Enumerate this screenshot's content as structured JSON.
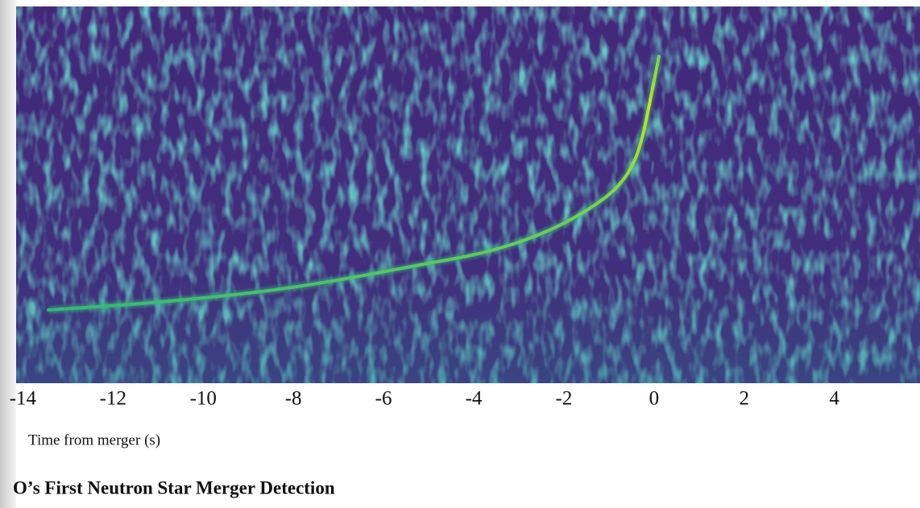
{
  "chart_data": {
    "type": "spectrogram",
    "title": "O’s First Neutron Star Merger Detection",
    "xlabel": "Time from merger (s)",
    "xlim": [
      -14.15,
      5.9
    ],
    "xticks": [
      -14,
      -12,
      -10,
      -8,
      -6,
      -4,
      -2,
      0,
      2,
      4
    ]
  }
}
